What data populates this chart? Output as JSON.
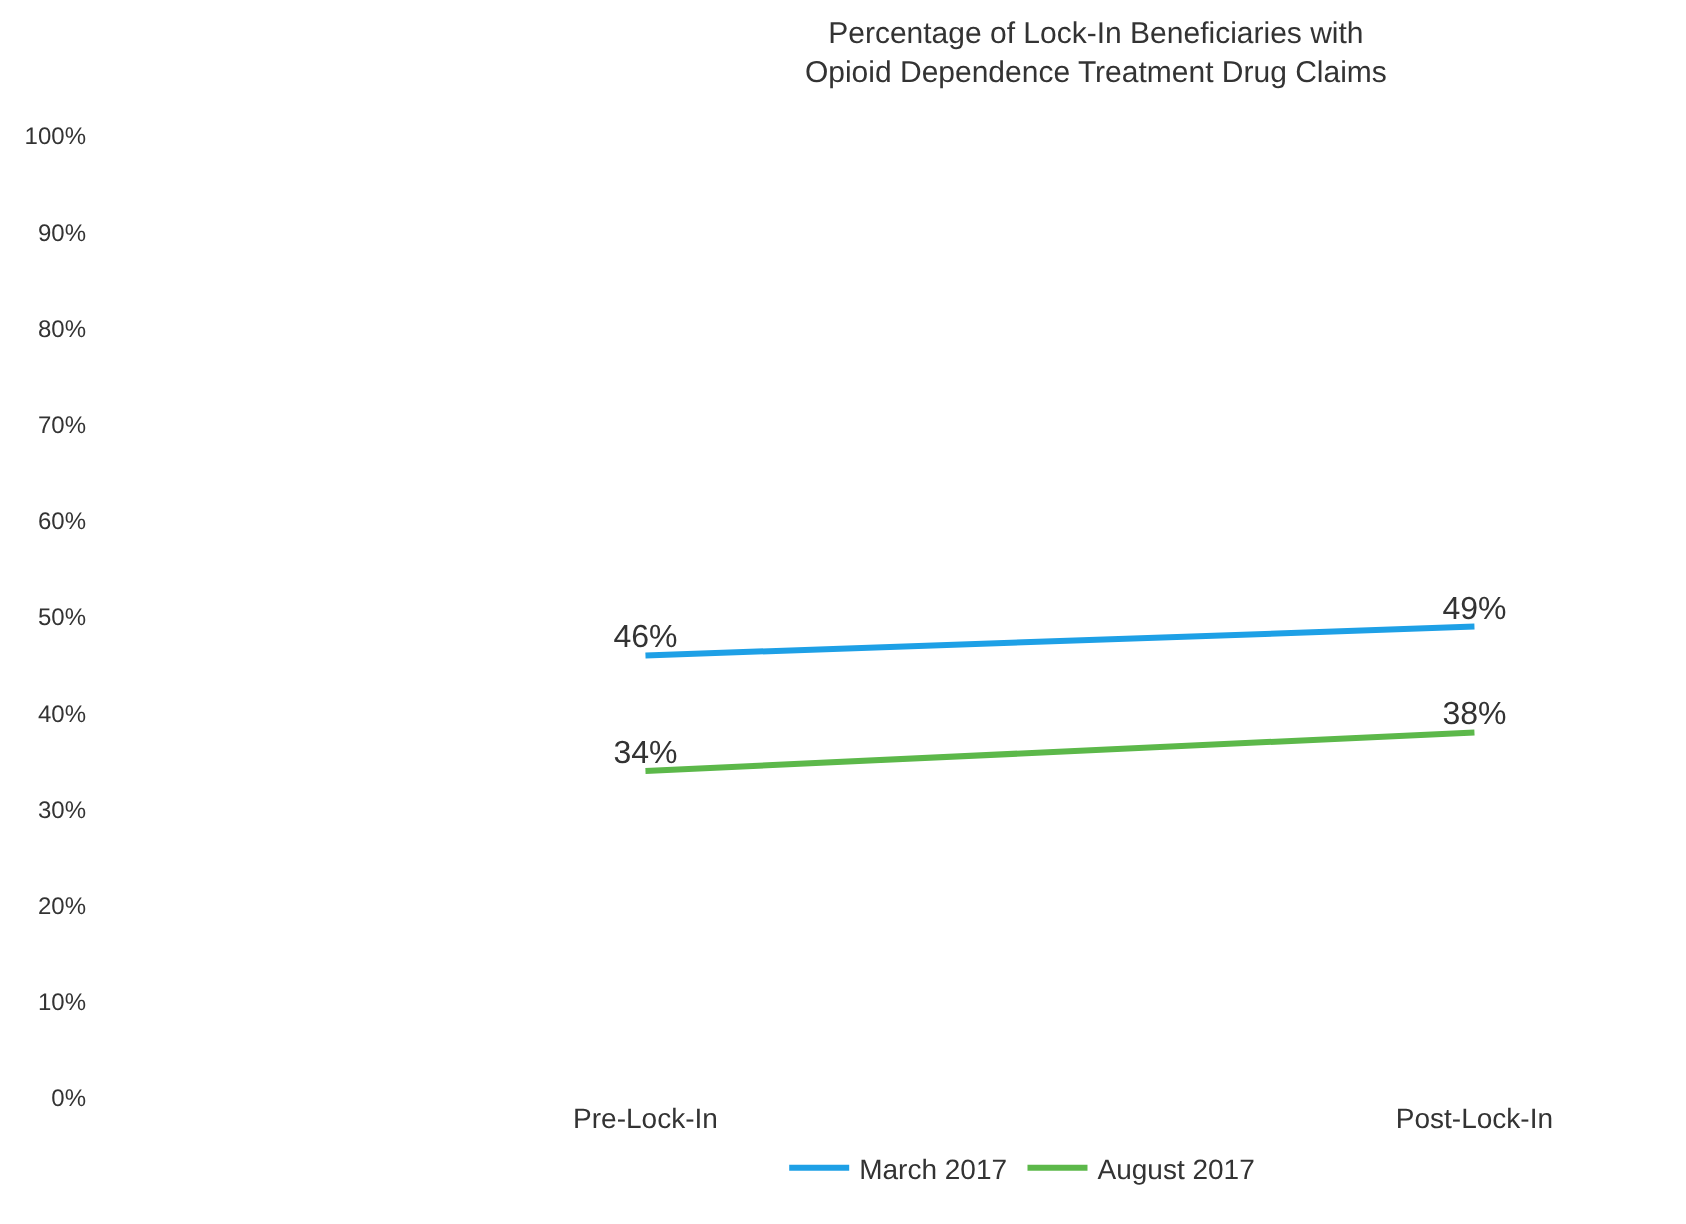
{
  "chart_data": {
    "type": "line",
    "title": "Percentage of Lock-In Beneficiaries with\nOpioid Dependence Treatment Drug Claims",
    "categories": [
      "Pre-Lock-In",
      "Post-Lock-In"
    ],
    "series": [
      {
        "name": "March 2017",
        "color": "#1ea0e6",
        "values": [
          46,
          49
        ],
        "value_labels": [
          "46%",
          "49%"
        ]
      },
      {
        "name": "August 2017",
        "color": "#5cb84a",
        "values": [
          34,
          38
        ],
        "value_labels": [
          "34%",
          "38%"
        ]
      }
    ],
    "ylim": [
      0,
      100
    ],
    "yticks": [
      {
        "value": 0,
        "label": "0%"
      },
      {
        "value": 10,
        "label": "10%"
      },
      {
        "value": 20,
        "label": "20%"
      },
      {
        "value": 30,
        "label": "30%"
      },
      {
        "value": 40,
        "label": "40%"
      },
      {
        "value": 50,
        "label": "50%"
      },
      {
        "value": 60,
        "label": "60%"
      },
      {
        "value": 70,
        "label": "70%"
      },
      {
        "value": 80,
        "label": "80%"
      },
      {
        "value": 90,
        "label": "90%"
      },
      {
        "value": 100,
        "label": "100%"
      }
    ],
    "grid": false,
    "legend": "bottom",
    "marker": "none",
    "line_style": "solid"
  }
}
